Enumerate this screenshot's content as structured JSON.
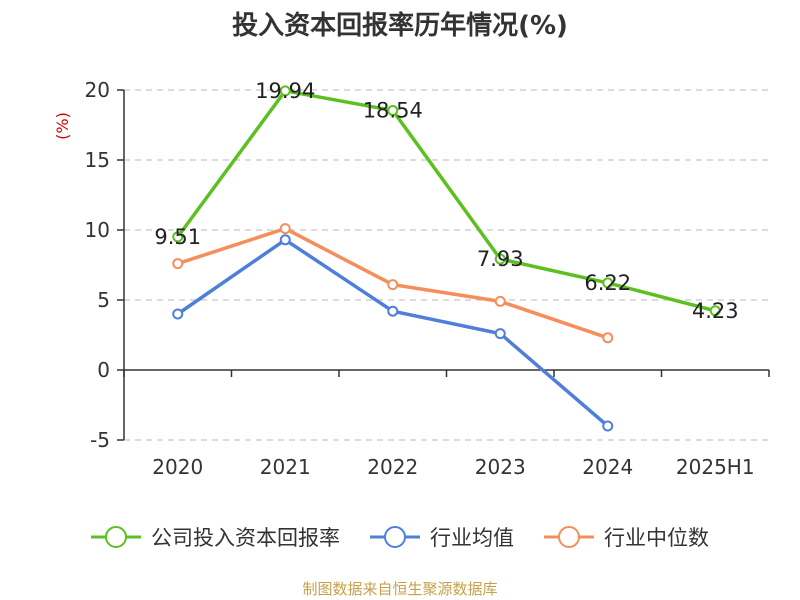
{
  "chart_data": {
    "type": "line",
    "title": "投入资本回报率历年情况(%)",
    "ylabel": "(%)",
    "xlabel": "",
    "categories": [
      "2020",
      "2021",
      "2022",
      "2023",
      "2024",
      "2025H1"
    ],
    "ylim": [
      -5,
      20
    ],
    "yticks": [
      -5,
      0,
      5,
      10,
      15,
      20
    ],
    "grid": true,
    "legend_position": "bottom",
    "series": [
      {
        "name": "公司投入资本回报率",
        "color": "#5cc021",
        "values": [
          9.51,
          19.94,
          18.54,
          7.93,
          6.22,
          4.23
        ],
        "labels": [
          "9.51",
          "19.94",
          "18.54",
          "7.93",
          "6.22",
          "4.23"
        ]
      },
      {
        "name": "行业均值",
        "color": "#4f7fdb",
        "values": [
          4.0,
          9.3,
          4.2,
          2.6,
          -4.0,
          null
        ]
      },
      {
        "name": "行业中位数",
        "color": "#f58e5a",
        "values": [
          7.6,
          10.1,
          6.1,
          4.9,
          2.3,
          null
        ]
      }
    ]
  },
  "footer": {
    "source": "制图数据来自恒生聚源数据库"
  }
}
